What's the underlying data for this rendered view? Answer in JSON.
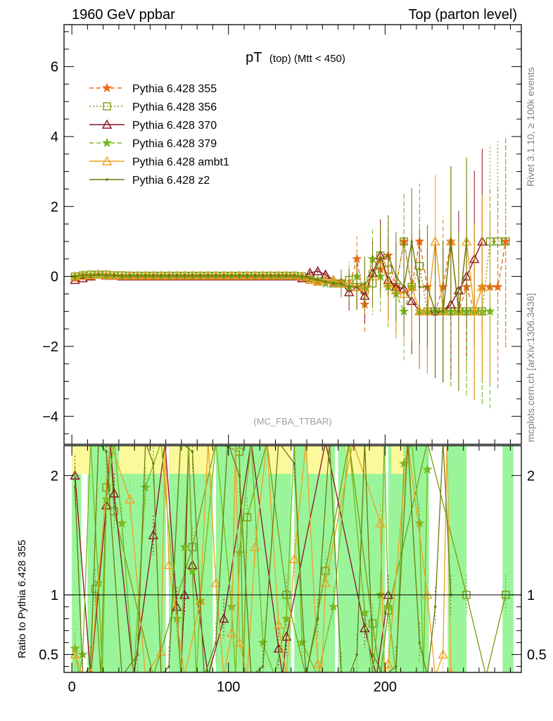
{
  "header": {
    "left": "1960 GeV ppbar",
    "right": "Top (parton level)"
  },
  "title": {
    "main": "pT",
    "small": "(top) (Mtt < 450)"
  },
  "watermark": "(MC_FBA_TTBAR)",
  "side_text": {
    "top": "Rivet 3.1.10, ≥ 100k events",
    "bottom": "mcplots.cern.ch [arXiv:1306.3436]"
  },
  "chart_data": [
    {
      "type": "line",
      "panel": "main",
      "xlim": [
        -5,
        287
      ],
      "ylim": [
        -4.8,
        7.2
      ],
      "yticks": [
        -4,
        -2,
        0,
        2,
        4,
        6
      ],
      "ytick_labels": [
        "−4",
        "−2",
        "0",
        "2",
        "4",
        "6"
      ],
      "xlabel": "",
      "ylabel": "",
      "legend_position": "top-left",
      "series": [
        {
          "name": "Pythia 6.428 355",
          "color": "#ee6a1a",
          "dash": "6,4",
          "marker": "star",
          "x": [
            2,
            7,
            12,
            17,
            22,
            27,
            32,
            37,
            42,
            47,
            52,
            57,
            62,
            67,
            72,
            77,
            82,
            87,
            92,
            97,
            102,
            107,
            112,
            117,
            122,
            127,
            132,
            137,
            142,
            147,
            152,
            157,
            162,
            167,
            172,
            177,
            182,
            187,
            192,
            197,
            202,
            207,
            212,
            217,
            222,
            227,
            232,
            237,
            242,
            247,
            252,
            257,
            262,
            267,
            272,
            277
          ],
          "y": [
            -0.05,
            0.0,
            0.0,
            0.05,
            0.05,
            0.02,
            0.0,
            0.0,
            0.0,
            0.0,
            0.0,
            0.0,
            0.0,
            0.0,
            0.0,
            0.0,
            0.0,
            0.0,
            0.0,
            0.0,
            0.0,
            0.0,
            0.0,
            0.0,
            0.0,
            0.0,
            0.02,
            0.02,
            0.0,
            -0.05,
            -0.1,
            -0.15,
            -0.2,
            -0.2,
            -0.15,
            -0.3,
            0.5,
            -0.8,
            0.5,
            0.2,
            0.6,
            -0.3,
            1.0,
            -0.3,
            1.0,
            -0.3,
            -1.0,
            -0.3,
            1.0,
            -1.0,
            -0.3,
            -1.0,
            -0.3,
            -0.3,
            -0.3,
            1.0
          ]
        },
        {
          "name": "Pythia 6.428 356",
          "color": "#7a9a10",
          "dash": "2,3",
          "marker": "square",
          "x": [
            2,
            7,
            12,
            17,
            22,
            27,
            32,
            37,
            42,
            47,
            52,
            57,
            62,
            67,
            72,
            77,
            82,
            87,
            92,
            97,
            102,
            107,
            112,
            117,
            122,
            127,
            132,
            137,
            142,
            147,
            152,
            157,
            162,
            167,
            172,
            177,
            182,
            187,
            192,
            197,
            202,
            207,
            212,
            217,
            222,
            227,
            232,
            237,
            242,
            247,
            252,
            257,
            262,
            267,
            272,
            277
          ],
          "y": [
            0.0,
            0.03,
            0.05,
            0.05,
            0.05,
            0.03,
            0.03,
            0.02,
            0.02,
            0.02,
            0.02,
            0.02,
            0.02,
            0.02,
            0.02,
            0.02,
            0.02,
            0.02,
            0.02,
            0.02,
            0.02,
            0.02,
            0.02,
            0.02,
            0.02,
            0.02,
            0.02,
            0.02,
            0.02,
            0.0,
            -0.05,
            -0.15,
            -0.1,
            -0.2,
            -0.2,
            -0.1,
            -0.3,
            -0.4,
            -0.2,
            0.6,
            0.2,
            -0.3,
            1.0,
            -0.3,
            0.3,
            -1.0,
            -1.0,
            -1.0,
            -1.0,
            -1.0,
            -1.0,
            -1.0,
            -1.0,
            1.0,
            1.0,
            1.0
          ]
        },
        {
          "name": "Pythia 6.428 370",
          "color": "#8b1020",
          "dash": "",
          "marker": "triangle",
          "x": [
            2,
            7,
            12,
            17,
            22,
            27,
            32,
            37,
            42,
            47,
            52,
            57,
            62,
            67,
            72,
            77,
            82,
            87,
            92,
            97,
            102,
            107,
            112,
            117,
            122,
            127,
            132,
            137,
            142,
            147,
            152,
            157,
            162,
            167,
            172,
            177,
            182,
            187,
            192,
            197,
            202,
            207,
            212,
            217,
            222,
            227,
            232,
            237,
            242,
            247,
            252,
            257,
            262
          ],
          "y": [
            -0.1,
            -0.05,
            0.0,
            0.05,
            0.02,
            0.02,
            0.0,
            0.0,
            0.0,
            0.0,
            0.0,
            0.0,
            0.0,
            0.0,
            0.0,
            0.0,
            0.0,
            0.0,
            0.0,
            0.0,
            0.0,
            0.0,
            0.0,
            0.0,
            0.0,
            0.0,
            0.0,
            0.0,
            0.0,
            -0.05,
            0.1,
            0.15,
            0.05,
            -0.1,
            -0.2,
            -0.45,
            -0.3,
            -0.55,
            0.1,
            0.6,
            -0.1,
            -0.3,
            -0.35,
            -0.7,
            -1.0,
            -1.0,
            -1.0,
            -1.0,
            -0.8,
            -0.4,
            0.0,
            0.5,
            1.0
          ]
        },
        {
          "name": "Pythia 6.428 379",
          "color": "#78b820",
          "dash": "6,4",
          "marker": "star",
          "x": [
            2,
            7,
            12,
            17,
            22,
            27,
            32,
            37,
            42,
            47,
            52,
            57,
            62,
            67,
            72,
            77,
            82,
            87,
            92,
            97,
            102,
            107,
            112,
            117,
            122,
            127,
            132,
            137,
            142,
            147,
            152,
            157,
            162,
            167,
            172,
            177,
            182,
            187,
            192,
            197,
            202,
            207,
            212,
            217,
            222,
            227,
            232,
            237,
            242,
            247,
            252,
            257,
            262,
            267
          ],
          "y": [
            0.0,
            0.05,
            0.05,
            0.05,
            0.03,
            0.03,
            0.02,
            0.02,
            0.02,
            0.02,
            0.02,
            0.02,
            0.02,
            0.02,
            0.02,
            0.02,
            0.02,
            0.02,
            0.02,
            0.02,
            0.02,
            0.02,
            0.02,
            0.02,
            0.02,
            0.02,
            0.02,
            0.02,
            0.02,
            0.0,
            -0.05,
            -0.1,
            -0.2,
            -0.15,
            -0.2,
            -0.3,
            0.0,
            -0.3,
            0.5,
            0.0,
            -0.3,
            -0.5,
            -1.0,
            -0.3,
            -1.0,
            -1.0,
            -1.0,
            -1.0,
            -1.0,
            -1.0,
            -1.0,
            -1.0,
            -1.0,
            -1.0
          ]
        },
        {
          "name": "Pythia 6.428 ambt1",
          "color": "#f0a020",
          "dash": "",
          "marker": "triangle",
          "x": [
            2,
            7,
            12,
            17,
            22,
            27,
            32,
            37,
            42,
            47,
            52,
            57,
            62,
            67,
            72,
            77,
            82,
            87,
            92,
            97,
            102,
            107,
            112,
            117,
            122,
            127,
            132,
            137,
            142,
            147,
            152,
            157,
            162,
            167,
            172,
            177,
            182,
            187,
            192,
            197,
            202,
            207,
            212,
            217,
            222,
            227,
            232,
            237,
            242,
            247,
            252,
            257,
            262
          ],
          "y": [
            0.0,
            0.02,
            0.03,
            0.05,
            0.03,
            0.03,
            0.02,
            0.02,
            0.02,
            0.02,
            0.02,
            0.02,
            0.02,
            0.02,
            0.02,
            0.02,
            0.02,
            0.02,
            0.02,
            0.02,
            0.02,
            0.02,
            0.02,
            0.02,
            0.02,
            0.02,
            0.02,
            0.02,
            0.02,
            0.0,
            -0.1,
            -0.15,
            -0.1,
            -0.1,
            -0.2,
            -0.2,
            -0.3,
            -0.3,
            0.0,
            0.5,
            -0.2,
            -0.4,
            -0.5,
            -0.3,
            -1.0,
            -1.0,
            1.0,
            -1.0,
            1.0,
            -1.0,
            1.0,
            -1.0,
            -0.3
          ]
        },
        {
          "name": "Pythia 6.428 z2",
          "color": "#6b7a10",
          "dash": "",
          "marker": "dot",
          "x": [
            2,
            7,
            12,
            17,
            22,
            27,
            32,
            37,
            42,
            47,
            52,
            57,
            62,
            67,
            72,
            77,
            82,
            87,
            92,
            97,
            102,
            107,
            112,
            117,
            122,
            127,
            132,
            137,
            142,
            147,
            152,
            157,
            162,
            167,
            172,
            177,
            182,
            187,
            192,
            197,
            202,
            207,
            212,
            217,
            222,
            227,
            232,
            237,
            242,
            247,
            252
          ],
          "y": [
            0.0,
            0.03,
            0.03,
            0.05,
            0.03,
            0.03,
            0.02,
            0.02,
            0.02,
            0.02,
            0.02,
            0.02,
            0.02,
            0.02,
            0.02,
            0.02,
            0.02,
            0.02,
            0.02,
            0.02,
            0.02,
            0.02,
            0.02,
            0.02,
            0.02,
            0.02,
            0.02,
            0.02,
            0.02,
            0.0,
            -0.05,
            -0.1,
            -0.15,
            -0.2,
            -0.2,
            -0.3,
            -0.3,
            -0.2,
            0.0,
            0.5,
            0.6,
            0.0,
            -0.3,
            1.0,
            -0.3,
            -0.3,
            -1.0,
            -1.0,
            1.0,
            -1.0,
            1.0
          ]
        }
      ]
    },
    {
      "type": "line",
      "panel": "ratio",
      "xlim": [
        -5,
        287
      ],
      "ylim": [
        0.35,
        2.25
      ],
      "yticks": [
        0.5,
        1,
        2
      ],
      "ytick_labels": [
        "0.5",
        "1",
        "2"
      ],
      "xticks": [
        0,
        100,
        200
      ],
      "xtick_labels": [
        "0",
        "100",
        "200"
      ],
      "ylabel": "Ratio to Pythia 6.428 355",
      "reference_line": 1,
      "green_band_bins": [
        [
          0,
          6
        ],
        [
          10,
          60
        ],
        [
          62,
          90
        ],
        [
          92,
          140
        ],
        [
          142,
          168
        ],
        [
          170,
          200
        ],
        [
          202,
          228
        ],
        [
          240,
          252
        ],
        [
          275,
          282
        ]
      ],
      "yellow_band_bins": [
        [
          0,
          12
        ],
        [
          30,
          60
        ],
        [
          62,
          90
        ],
        [
          125,
          140
        ],
        [
          150,
          165
        ],
        [
          175,
          200
        ],
        [
          204,
          212
        ]
      ],
      "series": [
        {
          "name": "Pythia 6.428 356",
          "color": "#7a9a10",
          "marker": "square",
          "x": [
            15,
            22,
            27,
            77,
            107,
            112,
            137,
            162,
            192,
            202,
            252,
            277
          ],
          "y": [
            1.05,
            1.9,
            1.7,
            1.4,
            2.2,
            1.65,
            1.0,
            1.2,
            0.76,
            0.87,
            1.0,
            1.0
          ]
        },
        {
          "name": "Pythia 6.428 370",
          "color": "#8b1020",
          "marker": "triangle",
          "x": [
            2,
            22,
            27,
            52,
            67,
            72,
            77,
            97,
            132,
            137,
            187,
            202
          ],
          "y": [
            2.0,
            1.75,
            1.85,
            1.5,
            0.9,
            1.0,
            1.25,
            0.8,
            0.55,
            0.65,
            0.72,
            1.0
          ]
        },
        {
          "name": "Pythia 6.428 379",
          "color": "#78b820",
          "marker": "star",
          "x": [
            2,
            7,
            17,
            22,
            32,
            47,
            67,
            72,
            77,
            82,
            102,
            107,
            122,
            137,
            147,
            167,
            187,
            197,
            202,
            212,
            222,
            227
          ],
          "y": [
            0.55,
            0.5,
            1.1,
            1.8,
            1.6,
            1.9,
            0.8,
            1.4,
            1.2,
            0.95,
            0.9,
            1.35,
            0.6,
            0.8,
            0.6,
            0.9,
            0.85,
            1.0,
            0.9,
            2.1,
            1.6,
            2.05
          ]
        },
        {
          "name": "Pythia 6.428 ambt1",
          "color": "#f0a020",
          "marker": "triangle",
          "x": [
            2,
            12,
            37,
            57,
            62,
            82,
            92,
            102,
            107,
            117,
            132,
            142,
            157,
            162,
            197,
            202,
            227,
            237,
            242
          ],
          "y": [
            0.5,
            0.35,
            1.8,
            0.52,
            1.25,
            0.95,
            1.1,
            0.68,
            0.6,
            1.4,
            0.75,
            1.3,
            0.42,
            1.1,
            1.6,
            0.42,
            1.0,
            0.5,
            0.35
          ]
        },
        {
          "name": "Pythia 6.428 z2",
          "color": "#6b7a10",
          "marker": "dot",
          "x": [
            2,
            12,
            22,
            42,
            52,
            62,
            77,
            92,
            107,
            122,
            142,
            157,
            172,
            182,
            192,
            207,
            222,
            232,
            242
          ],
          "y": [
            1.9,
            0.4,
            2.2,
            0.5,
            2.1,
            0.4,
            2.2,
            0.6,
            2.0,
            0.4,
            2.1,
            0.8,
            0.35,
            0.5,
            0.5,
            0.4,
            0.6,
            0.9,
            1.0
          ]
        }
      ]
    }
  ]
}
